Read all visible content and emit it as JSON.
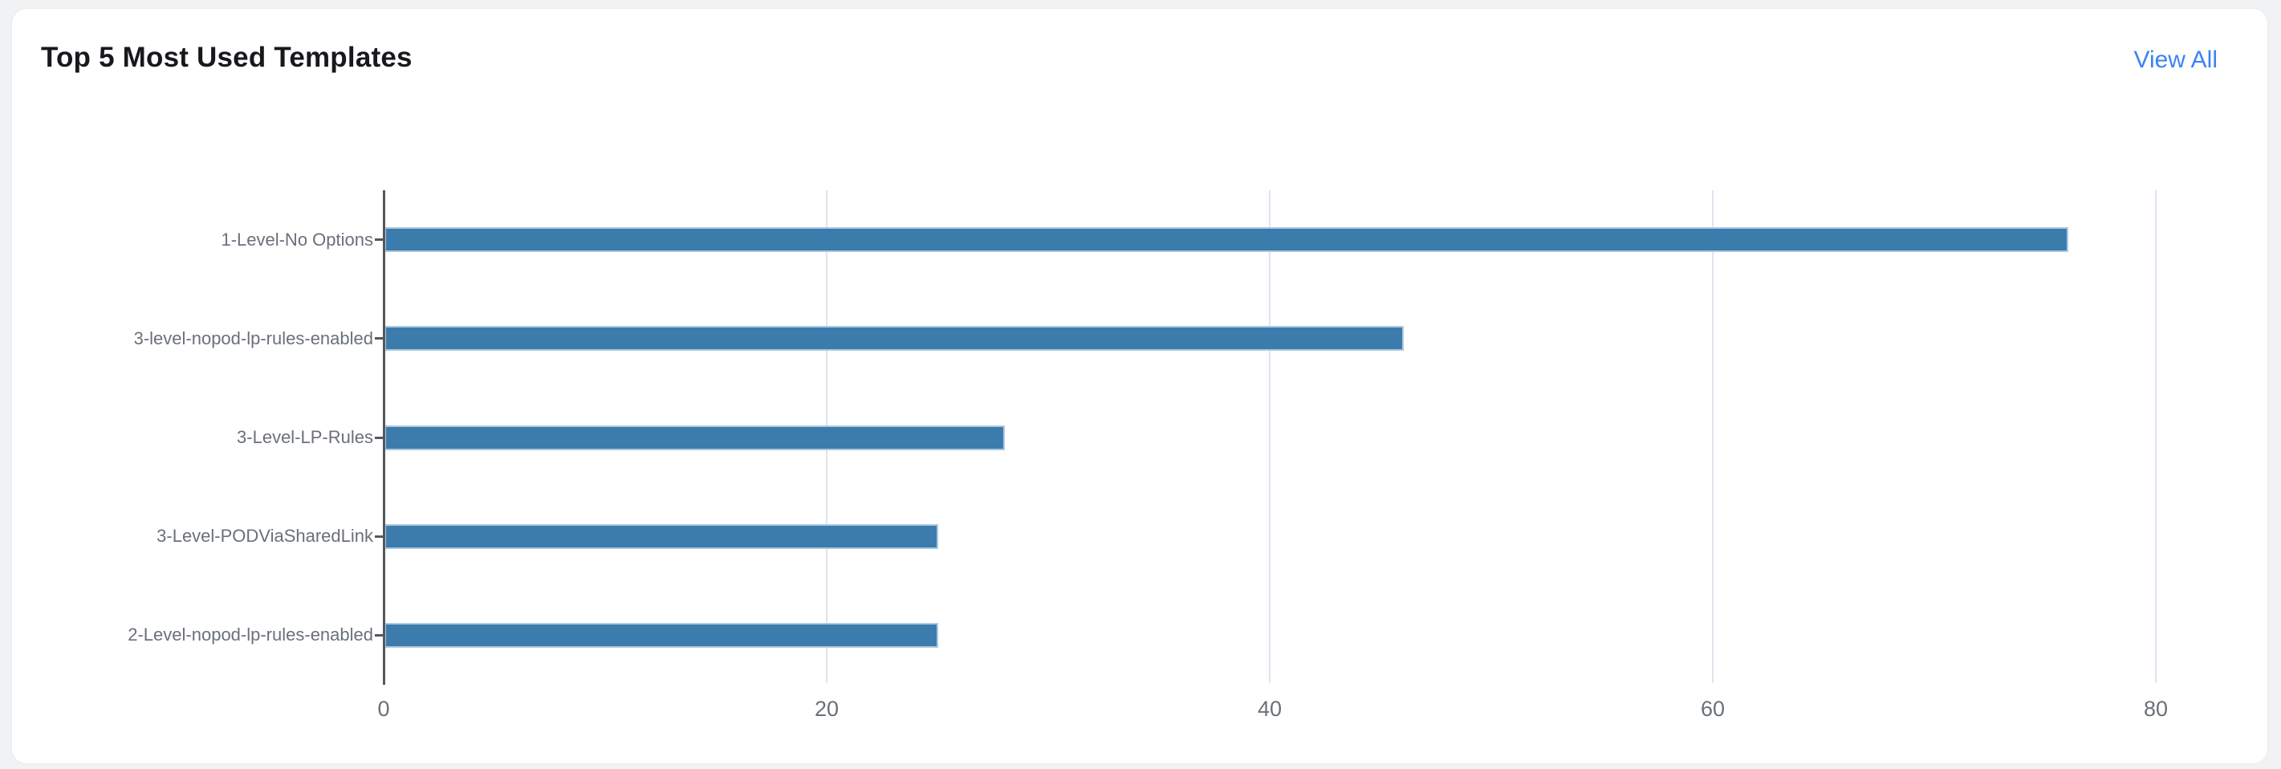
{
  "card": {
    "title": "Top 5 Most Used Templates",
    "view_all_label": "View All",
    "accent_color": "#3b82f6"
  },
  "chart_data": {
    "type": "bar",
    "orientation": "horizontal",
    "title": "Top 5 Most Used Templates",
    "categories": [
      "1-Level-No Options",
      "3-level-nopod-lp-rules-enabled",
      "3-Level-LP-Rules",
      "3-Level-PODViaSharedLink",
      "2-Level-nopod-lp-rules-enabled"
    ],
    "values": [
      76,
      46,
      28,
      25,
      25
    ],
    "xlabel": "",
    "ylabel": "",
    "xlim": [
      0,
      84
    ],
    "xticks": [
      0,
      20,
      40,
      60,
      80
    ],
    "grid": true,
    "legend": false,
    "colors": {
      "bar_fill": "#3c7cac",
      "bar_border": "#aec9e0",
      "axis_line": "#55575b",
      "gridline": "#dfe5ef",
      "tick_label": "#6a707a",
      "category_label": "#6a707a"
    }
  }
}
